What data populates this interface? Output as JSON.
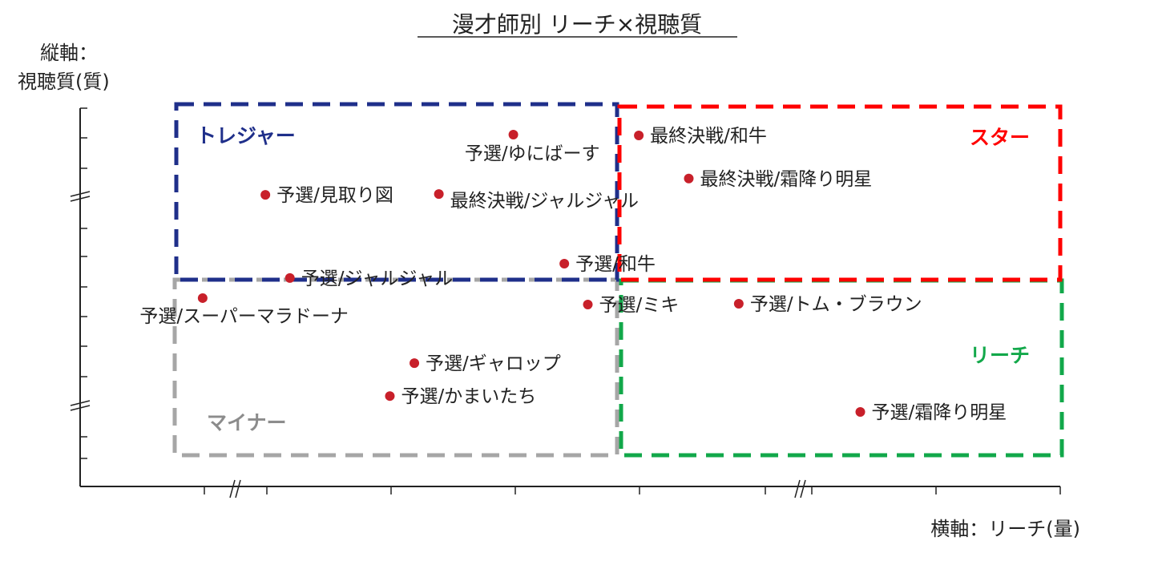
{
  "chart_data": {
    "type": "scatter",
    "title": "漫才師別 リーチ×視聴質",
    "xlabel": "横軸：リーチ(量)",
    "ylabel_line1": "縦軸：",
    "ylabel_line2": "視聴質(質)",
    "xlim": [
      0,
      100
    ],
    "ylim": [
      0,
      100
    ],
    "axis_breaks": {
      "x": true,
      "y": true
    },
    "grid": false,
    "quadrants": [
      {
        "name": "トレジャー",
        "color": "#1f2f8a",
        "position": "top-left"
      },
      {
        "name": "スター",
        "color": "#ff0000",
        "position": "top-right"
      },
      {
        "name": "マイナー",
        "color": "#a6a6a6",
        "position": "bottom-left"
      },
      {
        "name": "リーチ",
        "color": "#12a84a",
        "position": "bottom-right"
      }
    ],
    "point_color": "#c8202a",
    "points": [
      {
        "label": "予選/ゆにばーす",
        "x": 44.2,
        "y": 93.0,
        "label_pos": "below-left"
      },
      {
        "label": "予選/見取り図",
        "x": 18.9,
        "y": 77.1,
        "label_pos": "right"
      },
      {
        "label": "最終決戦/ジャルジャル",
        "x": 36.6,
        "y": 77.3,
        "label_pos": "right-low"
      },
      {
        "label": "最終決戦/和牛",
        "x": 57.0,
        "y": 92.8,
        "label_pos": "right"
      },
      {
        "label": "最終決戦/霜降り明星",
        "x": 62.1,
        "y": 81.4,
        "label_pos": "right"
      },
      {
        "label": "予選/和牛",
        "x": 49.4,
        "y": 58.9,
        "label_pos": "right"
      },
      {
        "label": "予選/ジャルジャル",
        "x": 21.4,
        "y": 55.1,
        "label_pos": "right"
      },
      {
        "label": "予選/スーパーマラドーナ",
        "x": 12.5,
        "y": 49.8,
        "label_pos": "below-left"
      },
      {
        "label": "予選/ミキ",
        "x": 51.8,
        "y": 48.1,
        "label_pos": "right"
      },
      {
        "label": "予選/トム・ブラウン",
        "x": 67.2,
        "y": 48.3,
        "label_pos": "right"
      },
      {
        "label": "予選/ギャロップ",
        "x": 34.1,
        "y": 32.6,
        "label_pos": "right"
      },
      {
        "label": "予選/かまいたち",
        "x": 31.6,
        "y": 23.9,
        "label_pos": "right"
      },
      {
        "label": "予選/霜降り明星",
        "x": 79.6,
        "y": 19.7,
        "label_pos": "right"
      }
    ]
  }
}
